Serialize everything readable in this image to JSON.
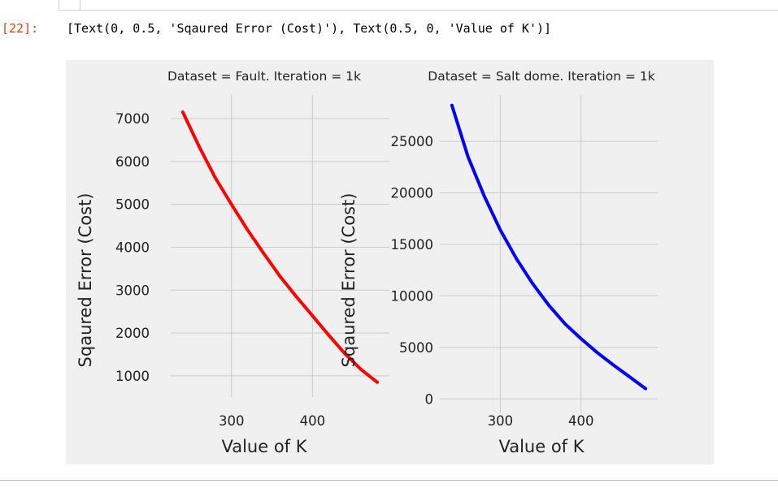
{
  "notebook": {
    "prompt": "[22]:",
    "output_text": "[Text(0, 0.5, 'Sqaured Error (Cost)'), Text(0.5, 0, 'Value of K')]"
  },
  "chart_data": [
    {
      "type": "line",
      "title": "Dataset = Fault. Iteration = 1k",
      "xlabel": "Value of K",
      "ylabel": "Sqaured Error (Cost)",
      "xticks": [
        300,
        400
      ],
      "yticks": [
        1000,
        2000,
        3000,
        4000,
        5000,
        6000,
        7000
      ],
      "xlim": [
        225,
        495
      ],
      "ylim": [
        600,
        7550
      ],
      "grid": true,
      "series": [
        {
          "color": "#ff0000",
          "x": [
            240,
            260,
            280,
            300,
            320,
            340,
            360,
            380,
            400,
            420,
            440,
            460,
            480
          ],
          "values": [
            7150,
            6350,
            5620,
            5000,
            4400,
            3850,
            3320,
            2850,
            2400,
            1950,
            1520,
            1150,
            850
          ]
        }
      ]
    },
    {
      "type": "line",
      "title": "Dataset = Salt dome. Iteration = 1k",
      "xlabel": "Value of K",
      "ylabel": "Sqaured Error (Cost)",
      "xticks": [
        300,
        400
      ],
      "yticks": [
        0,
        5000,
        10000,
        15000,
        20000,
        25000
      ],
      "xlim": [
        225,
        495
      ],
      "ylim": [
        -1000,
        29500
      ],
      "grid": true,
      "series": [
        {
          "color": "#0000ff",
          "x": [
            240,
            260,
            280,
            300,
            320,
            340,
            360,
            380,
            400,
            420,
            440,
            460,
            480
          ],
          "values": [
            28500,
            23500,
            19700,
            16400,
            13600,
            11200,
            9100,
            7300,
            5850,
            4500,
            3300,
            2150,
            1000
          ]
        }
      ]
    }
  ]
}
